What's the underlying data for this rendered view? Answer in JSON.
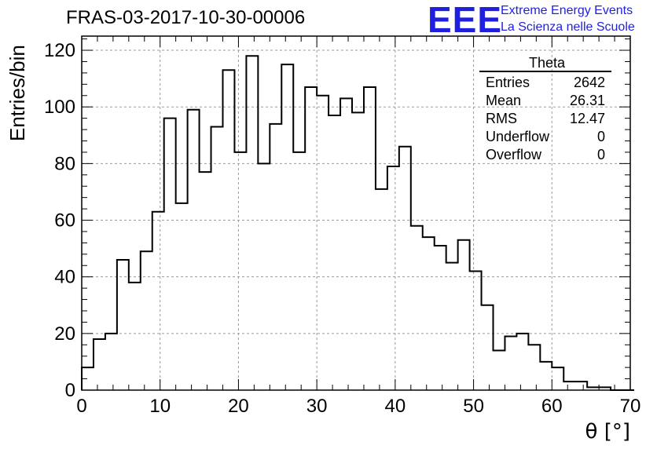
{
  "title": "FRAS-03-2017-10-30-00006",
  "logo": {
    "letters": "EEE",
    "line1": "Extreme Energy Events",
    "line2": "La Scienza nelle Scuole",
    "color": "#1f1fe0"
  },
  "stats_box": {
    "title": "Theta",
    "rows": [
      {
        "label": "Entries",
        "value": "2642"
      },
      {
        "label": "Mean",
        "value": "26.31"
      },
      {
        "label": "RMS",
        "value": "12.47"
      },
      {
        "label": "Underflow",
        "value": "0"
      },
      {
        "label": "Overflow",
        "value": "0"
      }
    ]
  },
  "chart_data": {
    "type": "bar",
    "histogram": true,
    "title": "FRAS-03-2017-10-30-00006",
    "xlabel": "θ [°]",
    "ylabel": "Entries/bin",
    "xlim": [
      0,
      70
    ],
    "ylim": [
      0,
      125
    ],
    "xticks": [
      0,
      10,
      20,
      30,
      40,
      50,
      60,
      70
    ],
    "yticks": [
      0,
      20,
      40,
      60,
      80,
      100,
      120
    ],
    "grid": true,
    "bin_width": 1.5,
    "bin_start": 0,
    "values": [
      8,
      18,
      20,
      46,
      38,
      49,
      63,
      96,
      66,
      99,
      77,
      93,
      113,
      84,
      118,
      80,
      94,
      115,
      84,
      107,
      104,
      97,
      103,
      98,
      107,
      71,
      79,
      86,
      58,
      54,
      51,
      45,
      53,
      42,
      30,
      14,
      19,
      20,
      16,
      10,
      8,
      3,
      3,
      1,
      1,
      0,
      0
    ]
  }
}
